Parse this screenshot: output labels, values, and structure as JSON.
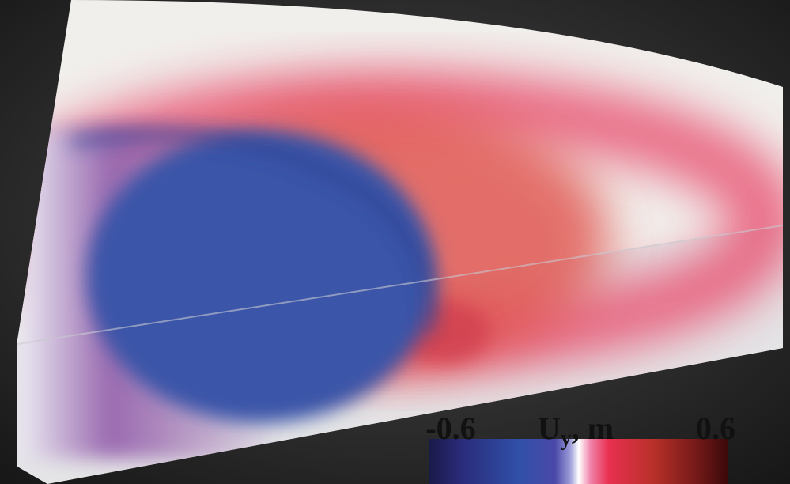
{
  "colorbar": {
    "min": -0.6,
    "max": 0.6,
    "label_symbol": "U",
    "label_subscript": "y",
    "label_unit": ", m"
  }
}
